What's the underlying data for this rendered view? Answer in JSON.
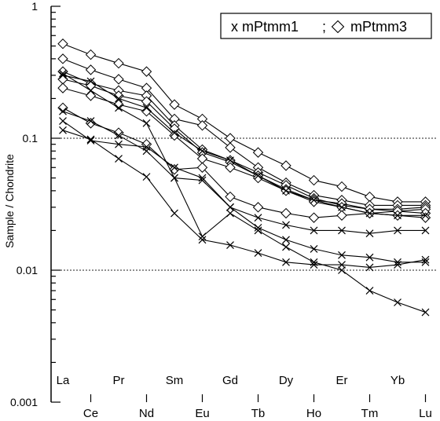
{
  "chart_data": {
    "type": "line",
    "title": "",
    "ylabel": "Sample / Chondrite",
    "xlabel": "",
    "y_scale": "log",
    "ylim": [
      0.001,
      1
    ],
    "y_ticks": [
      {
        "value": 1,
        "label": "1"
      },
      {
        "value": 0.1,
        "label": "0.1"
      },
      {
        "value": 0.01,
        "label": "0.01"
      },
      {
        "value": 0.001,
        "label": "0.001"
      }
    ],
    "reference_lines": [
      0.1,
      0.01
    ],
    "categories": [
      "La",
      "Ce",
      "Pr",
      "Nd",
      "Sm",
      "Eu",
      "Gd",
      "Tb",
      "Dy",
      "Ho",
      "Er",
      "Tm",
      "Yb",
      "Lu"
    ],
    "legend": {
      "placement": "top-right",
      "text_cross": "x mPtmm1",
      "separator": ";",
      "text_diamond": "mPtmm3"
    },
    "series": [
      {
        "marker": "diamond",
        "values": [
          0.52,
          0.43,
          0.37,
          0.32,
          0.18,
          0.14,
          0.1,
          0.078,
          0.062,
          0.048,
          0.043,
          0.036,
          0.033,
          0.033
        ]
      },
      {
        "marker": "diamond",
        "values": [
          0.4,
          0.33,
          0.28,
          0.24,
          0.14,
          0.125,
          0.085,
          0.06,
          0.046,
          0.037,
          0.034,
          0.031,
          0.031,
          0.031
        ]
      },
      {
        "marker": "diamond",
        "values": [
          0.32,
          0.26,
          0.23,
          0.21,
          0.125,
          0.082,
          0.068,
          0.055,
          0.044,
          0.035,
          0.031,
          0.029,
          0.029,
          0.03
        ]
      },
      {
        "marker": "diamond",
        "values": [
          0.28,
          0.25,
          0.21,
          0.19,
          0.118,
          0.078,
          0.066,
          0.052,
          0.041,
          0.034,
          0.032,
          0.029,
          0.028,
          0.029
        ]
      },
      {
        "marker": "diamond",
        "values": [
          0.24,
          0.21,
          0.18,
          0.16,
          0.105,
          0.07,
          0.06,
          0.05,
          0.04,
          0.033,
          0.03,
          0.027,
          0.028,
          0.027
        ]
      },
      {
        "marker": "diamond",
        "values": [
          0.17,
          0.13,
          0.11,
          0.09,
          0.058,
          0.06,
          0.036,
          0.03,
          0.027,
          0.025,
          0.026,
          0.027,
          0.026,
          0.025
        ]
      },
      {
        "marker": "cross",
        "values": [
          0.3,
          0.27,
          0.2,
          0.17,
          0.11,
          0.08,
          0.068,
          0.052,
          0.04,
          0.034,
          0.03,
          0.027,
          0.026,
          0.026
        ]
      },
      {
        "marker": "cross",
        "values": [
          0.31,
          0.23,
          0.17,
          0.13,
          0.05,
          0.048,
          0.03,
          0.025,
          0.022,
          0.02,
          0.02,
          0.019,
          0.02,
          0.02
        ]
      },
      {
        "marker": "cross",
        "values": [
          0.16,
          0.135,
          0.105,
          0.08,
          0.05,
          0.018,
          0.027,
          0.02,
          0.015,
          0.0115,
          0.01,
          0.007,
          0.0057,
          0.0048
        ]
      },
      {
        "marker": "cross",
        "values": [
          0.135,
          0.096,
          0.09,
          0.086,
          0.06,
          0.05,
          0.03,
          0.021,
          0.017,
          0.0145,
          0.013,
          0.0125,
          0.0115,
          0.0115
        ]
      },
      {
        "marker": "cross",
        "values": [
          0.115,
          0.098,
          0.07,
          0.051,
          0.027,
          0.017,
          0.0155,
          0.0135,
          0.0115,
          0.011,
          0.011,
          0.0105,
          0.011,
          0.012
        ]
      }
    ]
  }
}
